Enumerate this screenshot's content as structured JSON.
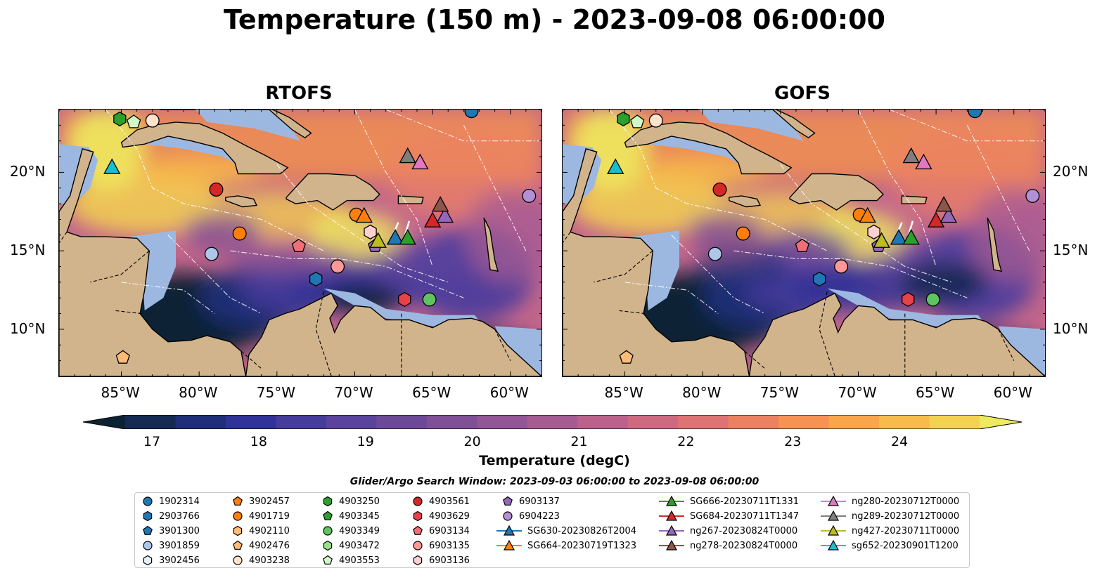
{
  "title": "Temperature (150 m) - 2023-09-08 06:00:00",
  "panels": [
    {
      "title": "RTOFS",
      "model": "rtofs"
    },
    {
      "title": "GOFS",
      "model": "gofs"
    }
  ],
  "map": {
    "lon_range": [
      -89,
      -58
    ],
    "lat_range": [
      7,
      24
    ],
    "lon_ticks": [
      "85°W",
      "80°W",
      "75°W",
      "70°W",
      "65°W",
      "60°W"
    ],
    "lat_ticks": [
      "20°N",
      "15°N",
      "10°N"
    ],
    "land_color": "#d2b48c",
    "shelf_color": "#9db8e0"
  },
  "colorbar": {
    "label": "Temperature (degC)",
    "min": 16.75,
    "max": 24.75,
    "ticks": [
      "17",
      "18",
      "19",
      "20",
      "21",
      "22",
      "23",
      "24"
    ],
    "tick_values": [
      17,
      18,
      19,
      20,
      21,
      22,
      23,
      24
    ],
    "colors": [
      "#0b2235",
      "#142a52",
      "#1f2f7a",
      "#2f3397",
      "#463c9c",
      "#5a439c",
      "#6d4a98",
      "#7f5096",
      "#925596",
      "#a65b93",
      "#ba628c",
      "#cd6a82",
      "#de7373",
      "#ec8162",
      "#f59254",
      "#f9a64a",
      "#f7bb49",
      "#f3d24f",
      "#eeea5e"
    ]
  },
  "search_window": "Glider/Argo Search Window: 2023-09-03 06:00:00 to 2023-09-08 06:00:00",
  "legend": {
    "argo": [
      {
        "label": "1902314",
        "marker": "circle",
        "color": "#1f77b4"
      },
      {
        "label": "2903766",
        "marker": "hexagon",
        "color": "#1f77b4"
      },
      {
        "label": "3901300",
        "marker": "pentagon",
        "color": "#1f77b4"
      },
      {
        "label": "3901859",
        "marker": "circle",
        "color": "#aec7e8"
      },
      {
        "label": "3902456",
        "marker": "hexagon",
        "color": "#e8f0fa"
      },
      {
        "label": "3902457",
        "marker": "pentagon",
        "color": "#ff7f0e"
      },
      {
        "label": "4901719",
        "marker": "circle",
        "color": "#ff7f0e"
      },
      {
        "label": "4902110",
        "marker": "hexagon",
        "color": "#ffbb78"
      },
      {
        "label": "4902476",
        "marker": "pentagon",
        "color": "#ffbb78"
      },
      {
        "label": "4903238",
        "marker": "circle",
        "color": "#ffe3cc"
      },
      {
        "label": "4903250",
        "marker": "hexagon",
        "color": "#2ca02c"
      },
      {
        "label": "4903345",
        "marker": "pentagon",
        "color": "#2ca02c"
      },
      {
        "label": "4903349",
        "marker": "circle",
        "color": "#5fc35f"
      },
      {
        "label": "4903472",
        "marker": "hexagon",
        "color": "#98df8a"
      },
      {
        "label": "4903553",
        "marker": "pentagon",
        "color": "#d2f7c8"
      },
      {
        "label": "4903561",
        "marker": "circle",
        "color": "#d62728"
      },
      {
        "label": "4903629",
        "marker": "hexagon",
        "color": "#e8414a"
      },
      {
        "label": "6903134",
        "marker": "pentagon",
        "color": "#ef6f78"
      },
      {
        "label": "6903135",
        "marker": "circle",
        "color": "#ff9896"
      },
      {
        "label": "6903136",
        "marker": "hexagon",
        "color": "#ffd0d0"
      },
      {
        "label": "6903137",
        "marker": "pentagon",
        "color": "#9467bd"
      },
      {
        "label": "6904223",
        "marker": "circle",
        "color": "#b290d6"
      }
    ],
    "gliders": [
      {
        "label": "SG630-20230826T2004",
        "color": "#1f77b4"
      },
      {
        "label": "SG664-20230719T1323",
        "color": "#ff7f0e"
      },
      {
        "label": "SG666-20230711T1331",
        "color": "#2ca02c"
      },
      {
        "label": "SG684-20230711T1347",
        "color": "#d62728"
      },
      {
        "label": "ng267-20230824T0000",
        "color": "#9467bd"
      },
      {
        "label": "ng278-20230824T0000",
        "color": "#8c564b"
      },
      {
        "label": "ng280-20230712T0000",
        "color": "#e377c2"
      },
      {
        "label": "ng289-20230712T0000",
        "color": "#7f7f7f"
      },
      {
        "label": "ng427-20230711T0000",
        "color": "#bcbd22"
      },
      {
        "label": "sg652-20230901T1200",
        "color": "#17becf"
      }
    ]
  },
  "map_markers": [
    {
      "lon": -62.5,
      "lat": 23.9,
      "marker": "circle",
      "color": "#1f77b4"
    },
    {
      "lon": -72.5,
      "lat": 13.2,
      "marker": "hexagon",
      "color": "#1f77b4"
    },
    {
      "lon": -79.2,
      "lat": 14.8,
      "marker": "circle",
      "color": "#aec7e8"
    },
    {
      "lon": -84.9,
      "lat": 8.2,
      "marker": "pentagon",
      "color": "#ffbb78"
    },
    {
      "lon": -77.4,
      "lat": 16.1,
      "marker": "circle",
      "color": "#ff7f0e"
    },
    {
      "lon": -83.0,
      "lat": 23.3,
      "marker": "circle",
      "color": "#ffe3cc"
    },
    {
      "lon": -85.1,
      "lat": 23.4,
      "marker": "hexagon",
      "color": "#2ca02c"
    },
    {
      "lon": -65.2,
      "lat": 11.9,
      "marker": "circle",
      "color": "#5fc35f"
    },
    {
      "lon": -84.2,
      "lat": 23.2,
      "marker": "pentagon",
      "color": "#d2f7c8"
    },
    {
      "lon": -78.9,
      "lat": 18.9,
      "marker": "circle",
      "color": "#d62728"
    },
    {
      "lon": -66.8,
      "lat": 11.9,
      "marker": "hexagon",
      "color": "#e8414a"
    },
    {
      "lon": -73.6,
      "lat": 15.3,
      "marker": "pentagon",
      "color": "#ef6f78"
    },
    {
      "lon": -71.1,
      "lat": 14.0,
      "marker": "circle",
      "color": "#ff9896"
    },
    {
      "lon": -69.0,
      "lat": 16.2,
      "marker": "hexagon",
      "color": "#ffd0d0"
    },
    {
      "lon": -68.7,
      "lat": 15.3,
      "marker": "pentagon",
      "color": "#9467bd"
    },
    {
      "lon": -58.8,
      "lat": 18.5,
      "marker": "circle",
      "color": "#b290d6"
    },
    {
      "lon": -69.9,
      "lat": 17.3,
      "marker": "circle",
      "color": "#ff7f0e"
    },
    {
      "lon": -85.6,
      "lat": 20.3,
      "marker": "triangle",
      "color": "#17becf"
    },
    {
      "lon": -67.4,
      "lat": 15.8,
      "marker": "triangle",
      "color": "#1f77b4"
    },
    {
      "lon": -69.4,
      "lat": 17.2,
      "marker": "triangle",
      "color": "#ff7f0e"
    },
    {
      "lon": -66.6,
      "lat": 15.8,
      "marker": "triangle",
      "color": "#2ca02c"
    },
    {
      "lon": -65.0,
      "lat": 16.9,
      "marker": "triangle",
      "color": "#d62728"
    },
    {
      "lon": -64.2,
      "lat": 17.2,
      "marker": "triangle",
      "color": "#9467bd"
    },
    {
      "lon": -64.5,
      "lat": 17.9,
      "marker": "triangle",
      "color": "#8c564b"
    },
    {
      "lon": -65.8,
      "lat": 20.6,
      "marker": "triangle",
      "color": "#e377c2"
    },
    {
      "lon": -66.6,
      "lat": 21.0,
      "marker": "triangle",
      "color": "#7f7f7f"
    },
    {
      "lon": -68.5,
      "lat": 15.6,
      "marker": "triangle",
      "color": "#bcbd22"
    }
  ]
}
